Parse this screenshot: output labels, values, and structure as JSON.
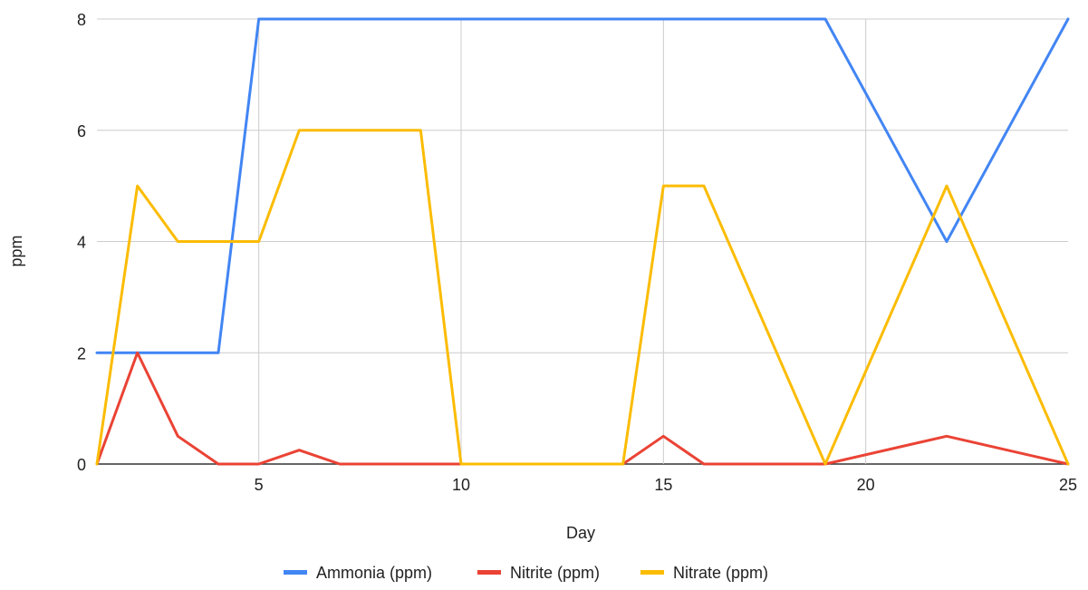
{
  "chart_data": {
    "type": "line",
    "title": "",
    "xlabel": "Day",
    "ylabel": "ppm",
    "xlim": [
      1,
      25
    ],
    "ylim": [
      0,
      8
    ],
    "x_ticks": [
      5,
      10,
      15,
      20,
      25
    ],
    "y_ticks": [
      0,
      2,
      4,
      6,
      8
    ],
    "grid": true,
    "legend_position": "bottom",
    "x": [
      1,
      2,
      3,
      4,
      5,
      6,
      7,
      8,
      9,
      10,
      11,
      12,
      13,
      14,
      15,
      16,
      17,
      18,
      19,
      20,
      21,
      22,
      23,
      24,
      25
    ],
    "series": [
      {
        "name": "Ammonia (ppm)",
        "color": "#4285f4",
        "points": [
          [
            1,
            2
          ],
          [
            2,
            2
          ],
          [
            3,
            2
          ],
          [
            4,
            2
          ],
          [
            5,
            8
          ],
          [
            6,
            8
          ],
          [
            7,
            8
          ],
          [
            8,
            8
          ],
          [
            9,
            8
          ],
          [
            10,
            8
          ],
          [
            11,
            8
          ],
          [
            12,
            8
          ],
          [
            13,
            8
          ],
          [
            14,
            8
          ],
          [
            15,
            8
          ],
          [
            16,
            8
          ],
          [
            17,
            8
          ],
          [
            18,
            8
          ],
          [
            19,
            8
          ],
          [
            22,
            4
          ],
          [
            25,
            8
          ]
        ]
      },
      {
        "name": "Nitrite (ppm)",
        "color": "#ea4335",
        "points": [
          [
            1,
            0
          ],
          [
            2,
            2
          ],
          [
            3,
            0.5
          ],
          [
            4,
            0
          ],
          [
            5,
            0
          ],
          [
            6,
            0.25
          ],
          [
            7,
            0
          ],
          [
            8,
            0
          ],
          [
            9,
            0
          ],
          [
            10,
            0
          ],
          [
            11,
            0
          ],
          [
            12,
            0
          ],
          [
            13,
            0
          ],
          [
            14,
            0
          ],
          [
            15,
            0.5
          ],
          [
            16,
            0
          ],
          [
            17,
            0
          ],
          [
            18,
            0
          ],
          [
            19,
            0
          ],
          [
            22,
            0.5
          ],
          [
            25,
            0
          ]
        ]
      },
      {
        "name": "Nitrate (ppm)",
        "color": "#fbbc04",
        "points": [
          [
            1,
            0
          ],
          [
            2,
            5
          ],
          [
            3,
            4
          ],
          [
            4,
            4
          ],
          [
            5,
            4
          ],
          [
            6,
            6
          ],
          [
            7,
            6
          ],
          [
            8,
            6
          ],
          [
            9,
            6
          ],
          [
            10,
            0
          ],
          [
            11,
            0
          ],
          [
            12,
            0
          ],
          [
            13,
            0
          ],
          [
            14,
            0
          ],
          [
            15,
            5
          ],
          [
            16,
            5
          ],
          [
            19,
            0
          ],
          [
            22,
            5
          ],
          [
            25,
            0
          ]
        ]
      }
    ]
  }
}
